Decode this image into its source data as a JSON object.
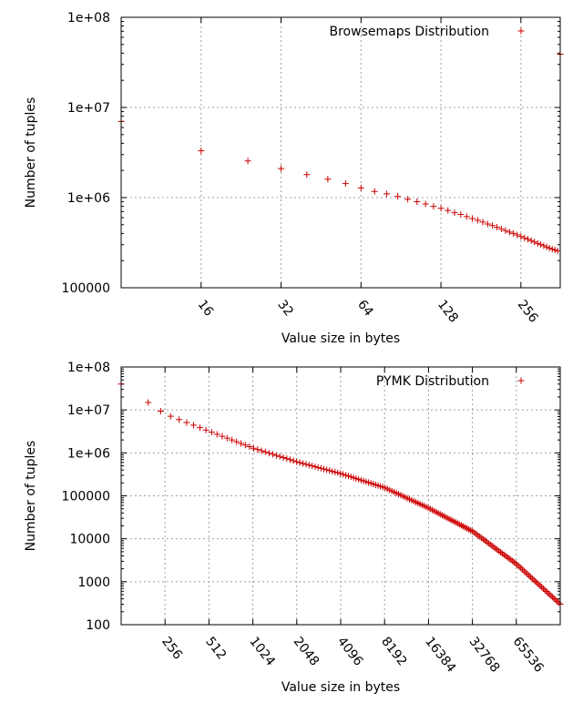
{
  "colors": {
    "series": "#cc0000",
    "grid": "#a0a0a0",
    "axis": "#000000"
  },
  "chart_data": [
    {
      "id": "browsemaps",
      "type": "scatter",
      "marker": "plus",
      "log_x": true,
      "log_y": true,
      "grid": true,
      "legend_position": "top-right",
      "xlabel": "Value size in bytes",
      "ylabel": "Number of tuples",
      "xlim": [
        8,
        360
      ],
      "ylim": [
        100000,
        100000000
      ],
      "x_ticks": [
        16,
        32,
        64,
        128,
        256
      ],
      "x_tick_labels": [
        "16",
        "32",
        "64",
        "128",
        "256"
      ],
      "y_ticks": [
        100000,
        1000000,
        10000000,
        100000000
      ],
      "y_tick_labels": [
        "100000",
        "1e+06",
        "1e+07",
        "1e+08"
      ],
      "series": [
        {
          "name": "Browsemaps Distribution",
          "x": [
            8,
            16,
            24,
            32,
            40,
            48,
            56,
            64,
            72,
            80,
            88,
            96,
            104,
            112,
            120,
            128,
            136,
            144,
            152,
            160,
            168,
            176,
            184,
            192,
            200,
            208,
            216,
            224,
            232,
            240,
            248,
            256,
            264,
            272,
            280,
            288,
            296,
            304,
            312,
            320,
            328,
            336,
            344,
            352,
            360
          ],
          "y": [
            7000000,
            3300000,
            2550000,
            2100000,
            1800000,
            1600000,
            1430000,
            1280000,
            1170000,
            1100000,
            1030000,
            960000,
            900000,
            850000,
            800000,
            760000,
            720000,
            680000,
            650000,
            615000,
            585000,
            560000,
            535000,
            510000,
            490000,
            470000,
            450000,
            430000,
            415000,
            400000,
            385000,
            370000,
            357000,
            345000,
            333000,
            322000,
            311000,
            301000,
            292000,
            283000,
            275000,
            268000,
            262000,
            256000,
            39000000
          ]
        }
      ]
    },
    {
      "id": "pymk",
      "type": "scatter",
      "marker": "plus",
      "log_x": true,
      "log_y": true,
      "grid": true,
      "legend_position": "top-right",
      "xlabel": "Value size in bytes",
      "ylabel": "Number of tuples",
      "xlim": [
        128,
        131072
      ],
      "ylim": [
        100,
        100000000
      ],
      "x_ticks": [
        256,
        512,
        1024,
        2048,
        4096,
        8192,
        16384,
        32768,
        65536
      ],
      "x_tick_labels": [
        "256",
        "512",
        "1024",
        "2048",
        "4096",
        "8192",
        "16384",
        "32768",
        "65536"
      ],
      "y_ticks": [
        100,
        1000,
        10000,
        100000,
        1000000,
        10000000,
        100000000
      ],
      "y_tick_labels": [
        "100",
        "1000",
        "10000",
        "100000",
        "1e+06",
        "1e+07",
        "1e+08"
      ],
      "series": [
        {
          "name": "PYMK Distribution",
          "x_start": 128,
          "x_end": 131072,
          "points": 160,
          "curve": [
            [
              128,
              40000000
            ],
            [
              256,
              8000000
            ],
            [
              512,
              3200000
            ],
            [
              1024,
              1300000
            ],
            [
              2048,
              620000
            ],
            [
              4096,
              330000
            ],
            [
              8192,
              155000
            ],
            [
              16384,
              52000
            ],
            [
              32768,
              15000
            ],
            [
              65536,
              2600
            ],
            [
              131072,
              300
            ]
          ]
        }
      ]
    }
  ]
}
